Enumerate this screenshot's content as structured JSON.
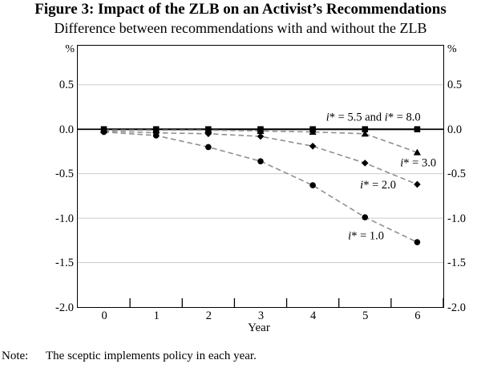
{
  "figure": {
    "title": "Figure 3: Impact of the ZLB on an Activist’s Recommendations",
    "subtitle": "Difference between recommendations with and without the ZLB",
    "unit_left": "%",
    "unit_right": "%",
    "note_label": "Note:",
    "note_text": "The sceptic implements policy in each year."
  },
  "chart_data": {
    "type": "line",
    "title": "Figure 3: Impact of the ZLB on an Activist’s Recommendations",
    "subtitle": "Difference between recommendations with and without the ZLB",
    "xlabel": "Year",
    "ylabel": "%",
    "x": [
      0,
      1,
      2,
      3,
      4,
      5,
      6
    ],
    "x_tick_labels": [
      "0",
      "1",
      "2",
      "3",
      "4",
      "5",
      "6"
    ],
    "ylim": [
      -2.0,
      0.94
    ],
    "yticks": [
      "0.5",
      "0.0",
      "-0.5",
      "-1.0",
      "-1.5",
      "-2.0"
    ],
    "grid": true,
    "legend_position": "inline-annotations",
    "series": [
      {
        "name": "i* = 5.5 and i* = 8.0",
        "marker": "square",
        "line": "solid",
        "values": [
          0.0,
          0.0,
          0.0,
          0.0,
          0.0,
          0.0,
          0.0
        ]
      },
      {
        "name": "i* = 3.0",
        "marker": "triangle",
        "line": "dashed",
        "values": [
          -0.01,
          -0.01,
          -0.01,
          -0.02,
          -0.03,
          -0.05,
          -0.26
        ]
      },
      {
        "name": "i* = 2.0",
        "marker": "diamond",
        "line": "dashed",
        "values": [
          -0.02,
          -0.04,
          -0.05,
          -0.08,
          -0.19,
          -0.38,
          -0.62
        ]
      },
      {
        "name": "i* = 1.0",
        "marker": "circle",
        "line": "dashed",
        "values": [
          -0.03,
          -0.07,
          -0.2,
          -0.36,
          -0.63,
          -0.99,
          -1.27
        ]
      }
    ],
    "annotations": [
      {
        "text": "i* = 5.5 and i* = 8.0",
        "x": 5.16,
        "y": 0.135
      },
      {
        "text": "i* = 3.0",
        "x": 6.02,
        "y": -0.38
      },
      {
        "text": "i* = 2.0",
        "x": 5.25,
        "y": -0.63
      },
      {
        "text": "i* = 1.0",
        "x": 5.02,
        "y": -1.2
      }
    ],
    "colors": {
      "marker": "#000000",
      "solid_line": "#000000",
      "dashed_line": "#909090",
      "gridline": "#cccccc",
      "axis": "#000000",
      "text": "#000000"
    }
  }
}
